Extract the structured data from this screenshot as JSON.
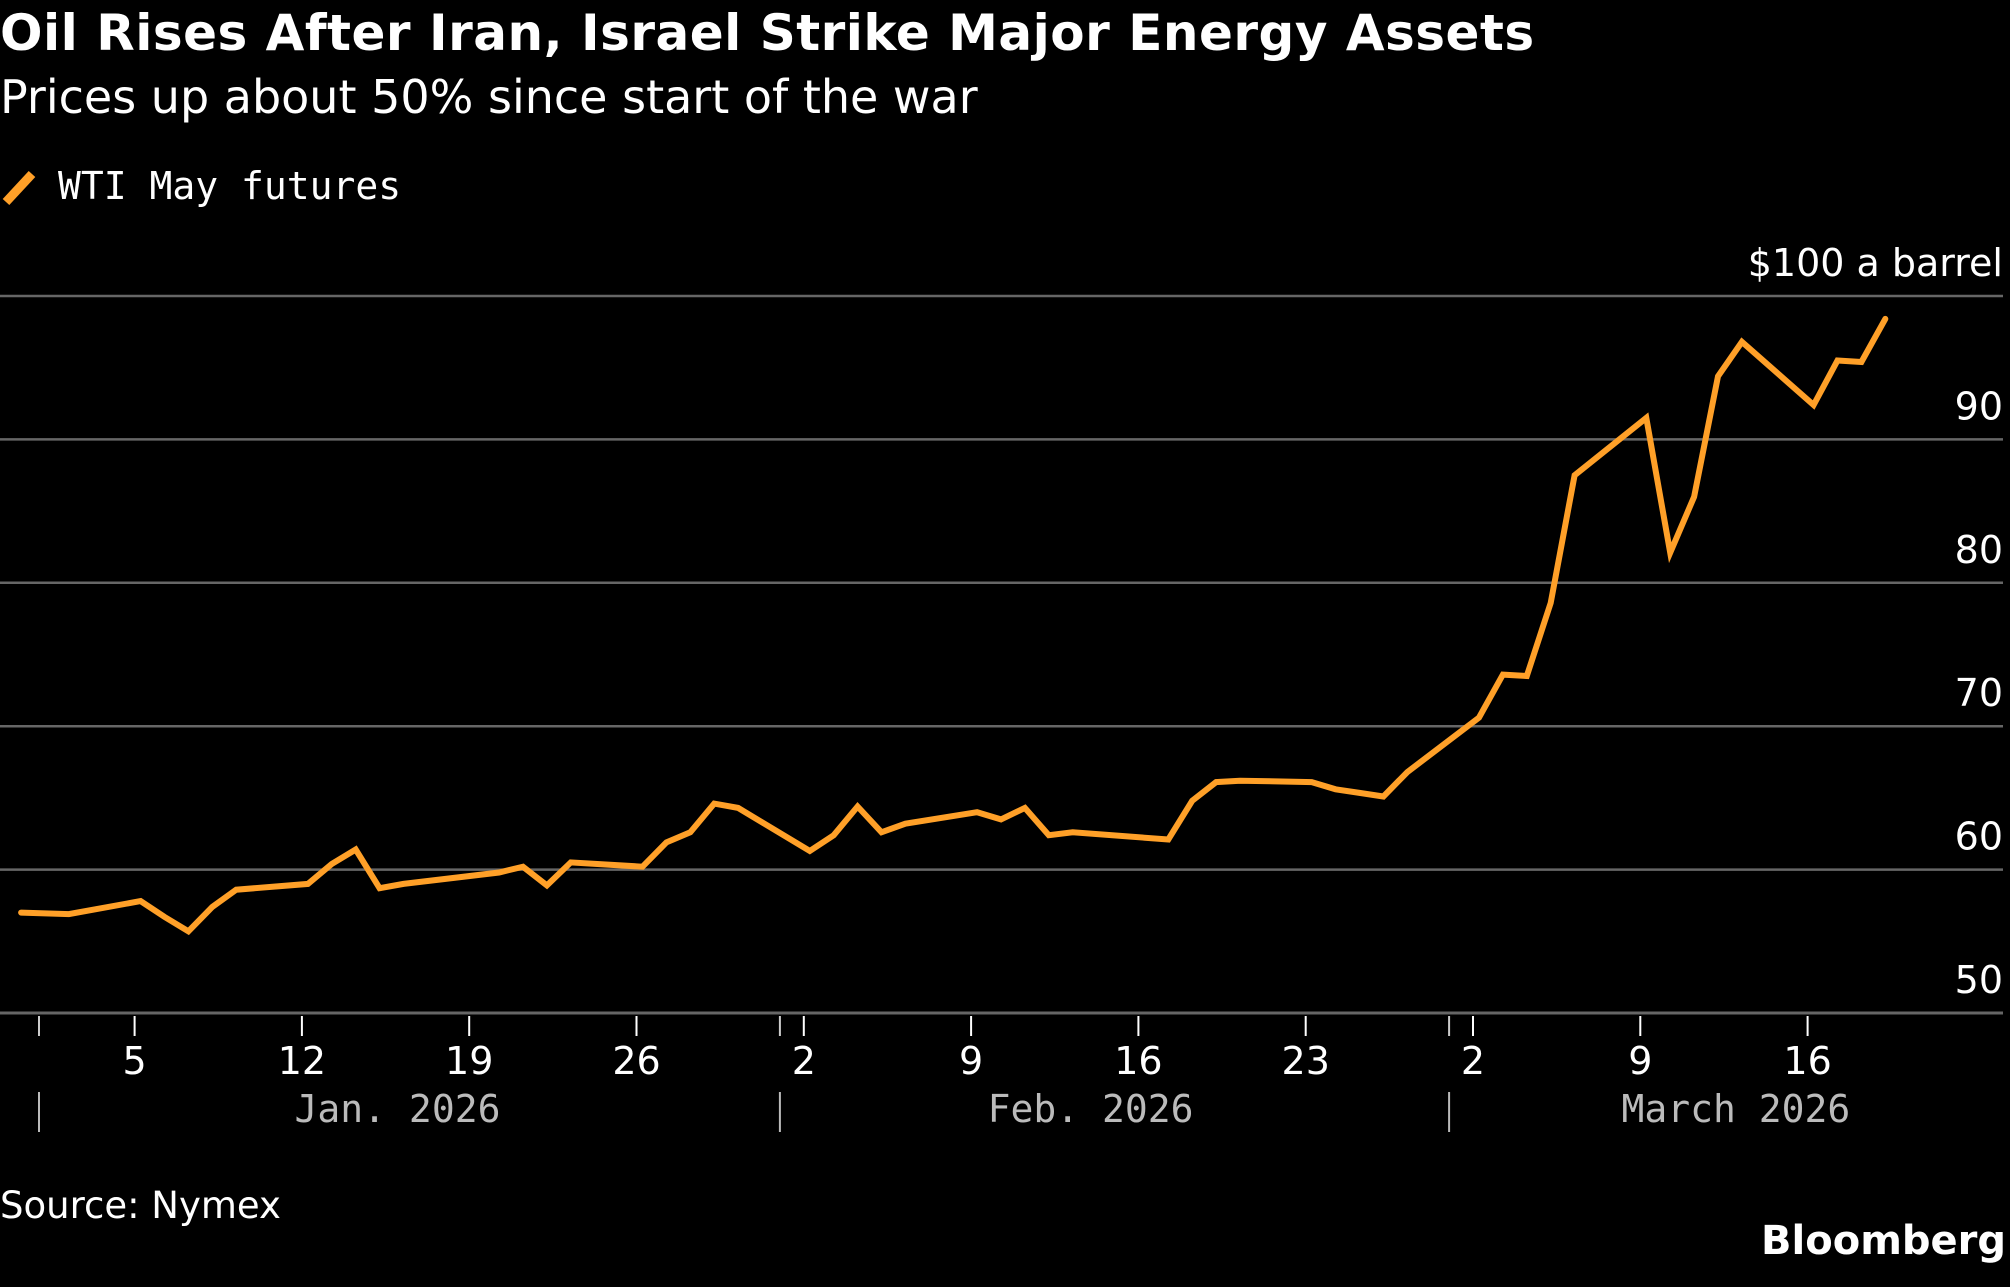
{
  "header": {
    "title": "Oil Rises After Iran, Israel Strike Major Energy Assets",
    "subtitle": "Prices up about 50% since start of the war"
  },
  "legend": {
    "label": "WTI May futures",
    "icon": "line-swatch-icon"
  },
  "footer": {
    "source": "Source: Nymex",
    "brand": "Bloomberg"
  },
  "colors": {
    "background": "#000000",
    "series": "#FFA028",
    "grid": "#666666",
    "text": "#FFFFFF",
    "month_label": "#BBBBBB"
  },
  "chart_data": {
    "type": "line",
    "title": "Oil Rises After Iran, Israel Strike Major Energy Assets",
    "subtitle": "Prices up about 50% since start of the war",
    "xlabel": "",
    "ylabel": "$ a barrel",
    "y_unit_label": "$100 a barrel",
    "ylim": [
      50,
      100
    ],
    "yticks": [
      50,
      60,
      70,
      80,
      90,
      100
    ],
    "ytick_labels": [
      "50",
      "60",
      "70",
      "80",
      "90",
      "$100 a barrel"
    ],
    "grid": true,
    "legend_position": "top-left",
    "x_range": [
      "2025-12-31",
      "2026-03-22"
    ],
    "x_ticks": [
      {
        "date": "2026-01-05",
        "label": "5"
      },
      {
        "date": "2026-01-12",
        "label": "12"
      },
      {
        "date": "2026-01-19",
        "label": "19"
      },
      {
        "date": "2026-01-26",
        "label": "26"
      },
      {
        "date": "2026-02-02",
        "label": "2"
      },
      {
        "date": "2026-02-09",
        "label": "9"
      },
      {
        "date": "2026-02-16",
        "label": "16"
      },
      {
        "date": "2026-02-23",
        "label": "23"
      },
      {
        "date": "2026-03-02",
        "label": "2"
      },
      {
        "date": "2026-03-09",
        "label": "9"
      },
      {
        "date": "2026-03-16",
        "label": "16"
      }
    ],
    "months": [
      {
        "start": "2026-01-01",
        "label": "Jan. 2026",
        "label_center": "2026-01-16"
      },
      {
        "start": "2026-02-01",
        "label": "Feb. 2026",
        "label_center": "2026-02-14"
      },
      {
        "start": "2026-03-01",
        "label": "March 2026",
        "label_center": "2026-03-13"
      }
    ],
    "source": "Source: Nymex",
    "series": [
      {
        "name": "WTI May futures",
        "x": [
          "2025-12-31",
          "2026-01-02",
          "2026-01-05",
          "2026-01-06",
          "2026-01-07",
          "2026-01-08",
          "2026-01-09",
          "2026-01-12",
          "2026-01-13",
          "2026-01-14",
          "2026-01-15",
          "2026-01-16",
          "2026-01-20",
          "2026-01-21",
          "2026-01-22",
          "2026-01-23",
          "2026-01-26",
          "2026-01-27",
          "2026-01-28",
          "2026-01-29",
          "2026-01-30",
          "2026-02-02",
          "2026-02-03",
          "2026-02-04",
          "2026-02-05",
          "2026-02-06",
          "2026-02-09",
          "2026-02-10",
          "2026-02-11",
          "2026-02-12",
          "2026-02-13",
          "2026-02-17",
          "2026-02-18",
          "2026-02-19",
          "2026-02-20",
          "2026-02-23",
          "2026-02-24",
          "2026-02-25",
          "2026-02-26",
          "2026-02-27",
          "2026-03-02",
          "2026-03-03",
          "2026-03-04",
          "2026-03-05",
          "2026-03-06",
          "2026-03-09",
          "2026-03-10",
          "2026-03-11",
          "2026-03-12",
          "2026-03-13",
          "2026-03-16",
          "2026-03-17",
          "2026-03-18",
          "2026-03-19"
        ],
        "values": [
          57.0,
          56.9,
          57.8,
          56.7,
          55.7,
          57.4,
          58.6,
          59.0,
          60.4,
          61.4,
          58.7,
          59.0,
          59.8,
          60.2,
          58.9,
          60.5,
          60.2,
          61.9,
          62.6,
          64.6,
          64.3,
          61.3,
          62.4,
          64.4,
          62.6,
          63.2,
          64.0,
          63.5,
          64.3,
          62.4,
          62.6,
          62.1,
          64.8,
          66.1,
          66.2,
          66.1,
          65.6,
          65.35,
          65.1,
          66.8,
          70.6,
          73.6,
          73.5,
          78.6,
          87.5,
          91.5,
          82.1,
          86.0,
          94.4,
          96.8,
          92.4,
          95.5,
          95.4,
          98.4
        ]
      }
    ]
  }
}
